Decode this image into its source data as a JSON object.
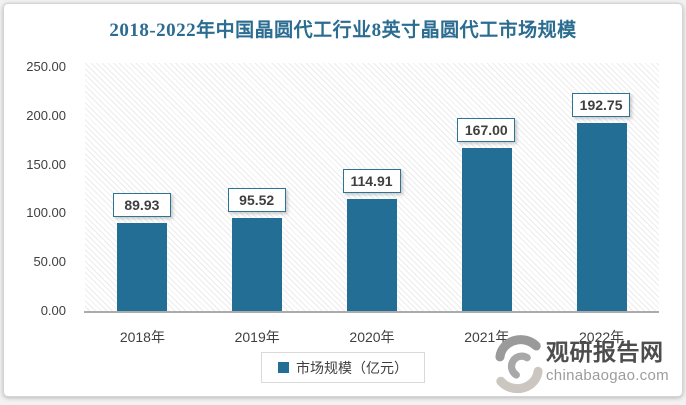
{
  "title": "2018-2022年中国晶圆代工行业8英寸晶圆代工市场规模",
  "chart_data": {
    "type": "bar",
    "categories": [
      "2018年",
      "2019年",
      "2020年",
      "2021年",
      "2022年"
    ],
    "values": [
      89.93,
      95.52,
      114.91,
      167.0,
      192.75
    ],
    "value_labels": [
      "89.93",
      "95.52",
      "114.91",
      "167.00",
      "192.75"
    ],
    "series_name": "市场规模（亿元）",
    "ylim": [
      0,
      250
    ],
    "ytick_interval": 50,
    "yticks": [
      {
        "label": "250.00",
        "value": 250
      },
      {
        "label": "200.00",
        "value": 200
      },
      {
        "label": "150.00",
        "value": 150
      },
      {
        "label": "100.00",
        "value": 100
      },
      {
        "label": "50.00",
        "value": 50
      },
      {
        "label": "0.00",
        "value": 0
      }
    ],
    "grid": false,
    "legend_position": "bottom",
    "plot_background": "diagonal-hatch"
  },
  "legend": {
    "label": "市场规模（亿元）"
  },
  "watermark": {
    "name": "观研报告网",
    "domain": "chinabaogao.com"
  },
  "colors": {
    "bar": "#226e95",
    "title": "#2b6c91",
    "label_box_border": "#2d7494",
    "axis_text": "#3f3f3f",
    "axis_line": "#ababab",
    "legend_border": "#d9d9d9",
    "logo_dark": "#4d4d4d",
    "logo_gray": "#9c9c9c"
  }
}
